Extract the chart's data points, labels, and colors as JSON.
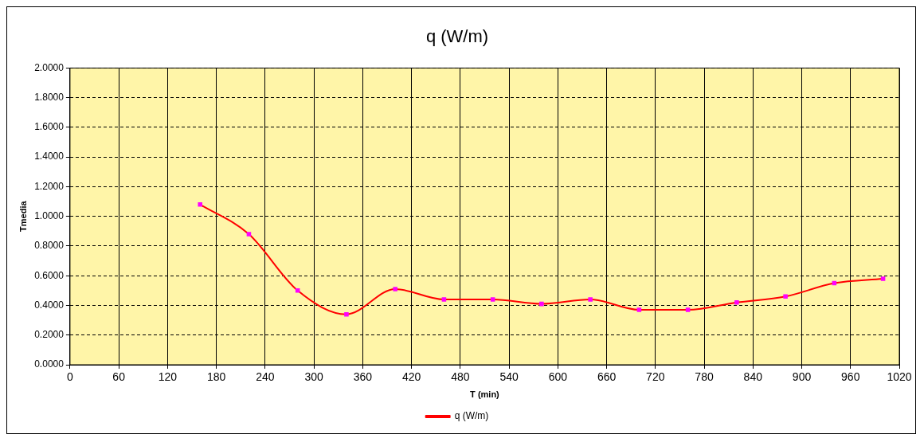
{
  "chart_data": {
    "type": "line",
    "title": "q (W/m)",
    "xlabel": "T (min)",
    "ylabel": "Tmedia",
    "x": [
      160,
      220,
      280,
      340,
      400,
      460,
      520,
      580,
      640,
      700,
      760,
      820,
      880,
      940,
      1000
    ],
    "series": [
      {
        "name": "q (W/m)",
        "color": "#ff0000",
        "values": [
          1.08,
          0.88,
          0.5,
          0.34,
          0.51,
          0.44,
          0.44,
          0.41,
          0.44,
          0.37,
          0.37,
          0.42,
          0.46,
          0.55,
          0.58
        ]
      }
    ],
    "xlim": [
      0,
      1020
    ],
    "xticks": [
      0,
      60,
      120,
      180,
      240,
      300,
      360,
      420,
      480,
      540,
      600,
      660,
      720,
      780,
      840,
      900,
      960,
      1020
    ],
    "ylim": [
      0,
      2
    ],
    "yticks": [
      {
        "value": 0,
        "label": "0.0000"
      },
      {
        "value": 0.2,
        "label": "0.2000"
      },
      {
        "value": 0.4,
        "label": "0.4000"
      },
      {
        "value": 0.6,
        "label": "0.6000"
      },
      {
        "value": 0.8,
        "label": "0.8000"
      },
      {
        "value": 1,
        "label": "1.0000"
      },
      {
        "value": 1.2,
        "label": "1.2000"
      },
      {
        "value": 1.4,
        "label": "1.4000"
      },
      {
        "value": 1.6,
        "label": "1.6000"
      },
      {
        "value": 1.8,
        "label": "1.8000"
      },
      {
        "value": 2,
        "label": "2.0000"
      }
    ],
    "grid": true,
    "legend": "bottom",
    "marker": "square",
    "line_style": "solid"
  }
}
